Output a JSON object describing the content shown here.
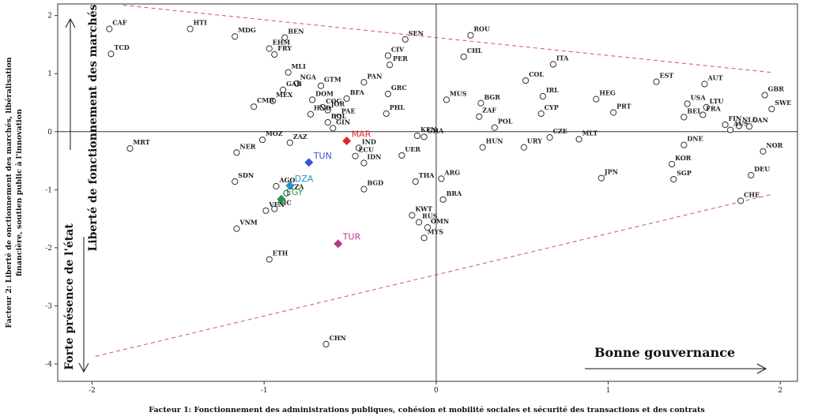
{
  "chart_data": {
    "type": "scatter",
    "xlabel": "Facteur 1: Fonctionnement des administrations publiques, cohésion et mobilité sociales et sécurité des transactions et des contrats",
    "ylabel_lines": [
      "Facteur 2: Liberté de onctionnement des marchés, libéralisation",
      "financière, soutien public à l'innovation"
    ],
    "xlim": [
      -2.2,
      2.1
    ],
    "ylim": [
      -4.3,
      2.2
    ],
    "xticks": [
      "-2",
      "-1",
      "0",
      "1",
      "2"
    ],
    "yticks": [
      "2",
      "1",
      "0",
      "-1",
      "-2",
      "-3",
      "-4"
    ],
    "annotations": {
      "right": "Bonne gouvernance",
      "up": "Liberté de fonctionnement des marchés",
      "down": "Forte présence de l'état"
    },
    "highlight_colors": {
      "MAR": "#e8262a",
      "TUN": "#3a56c8",
      "DZA": "#2a8fcc",
      "EGY": "#1f9a4a",
      "TUR": "#b8378a"
    },
    "points": [
      {
        "label": "CAF",
        "x": -1.9,
        "y": 1.77
      },
      {
        "label": "TCD",
        "x": -1.89,
        "y": 1.34
      },
      {
        "label": "HTI",
        "x": -1.43,
        "y": 1.77
      },
      {
        "label": "MDG",
        "x": -1.17,
        "y": 1.64
      },
      {
        "label": "BEN",
        "x": -0.88,
        "y": 1.62
      },
      {
        "label": "EHM",
        "x": -0.97,
        "y": 1.43
      },
      {
        "label": "FRY",
        "x": -0.94,
        "y": 1.33
      },
      {
        "label": "MLI",
        "x": -0.86,
        "y": 1.02
      },
      {
        "label": "NGA",
        "x": -0.81,
        "y": 0.83
      },
      {
        "label": "GTM",
        "x": -0.67,
        "y": 0.79
      },
      {
        "label": "GAB",
        "x": -0.89,
        "y": 0.72
      },
      {
        "label": "DOM",
        "x": -0.72,
        "y": 0.55
      },
      {
        "label": "MEX",
        "x": -0.95,
        "y": 0.53
      },
      {
        "label": "COG",
        "x": -0.66,
        "y": 0.42
      },
      {
        "label": "BFA",
        "x": -0.52,
        "y": 0.57
      },
      {
        "label": "JOR",
        "x": -0.63,
        "y": 0.37
      },
      {
        "label": "PAE",
        "x": -0.57,
        "y": 0.25
      },
      {
        "label": "HND",
        "x": -0.73,
        "y": 0.3
      },
      {
        "label": "CMR",
        "x": -1.06,
        "y": 0.43
      },
      {
        "label": "BOL",
        "x": -0.63,
        "y": 0.16
      },
      {
        "label": "PAN",
        "x": -0.42,
        "y": 0.85
      },
      {
        "label": "CIV",
        "x": -0.28,
        "y": 1.31
      },
      {
        "label": "PER",
        "x": -0.27,
        "y": 1.15
      },
      {
        "label": "SEN",
        "x": -0.18,
        "y": 1.59
      },
      {
        "label": "GRC",
        "x": -0.28,
        "y": 0.65
      },
      {
        "label": "PHL",
        "x": -0.29,
        "y": 0.31
      },
      {
        "label": "MOZ",
        "x": -1.01,
        "y": -0.14
      },
      {
        "label": "MRT",
        "x": -1.78,
        "y": -0.29
      },
      {
        "label": "ZAZ",
        "x": -0.85,
        "y": -0.19
      },
      {
        "label": "GIN",
        "x": -0.6,
        "y": 0.06
      },
      {
        "label": "KEN",
        "x": -0.11,
        "y": -0.07
      },
      {
        "label": "GHA",
        "x": -0.07,
        "y": -0.09
      },
      {
        "label": "IND",
        "x": -0.45,
        "y": -0.28
      },
      {
        "label": "ECU",
        "x": -0.47,
        "y": -0.42
      },
      {
        "label": "UER",
        "x": -0.2,
        "y": -0.41
      },
      {
        "label": "IDN",
        "x": -0.42,
        "y": -0.54
      },
      {
        "label": "NER",
        "x": -1.16,
        "y": -0.36
      },
      {
        "label": "SDN",
        "x": -1.17,
        "y": -0.86
      },
      {
        "label": "AGO",
        "x": -0.93,
        "y": -0.94
      },
      {
        "label": "TZA",
        "x": -0.87,
        "y": -1.06
      },
      {
        "label": "NIC",
        "x": -0.94,
        "y": -1.33
      },
      {
        "label": "VNM",
        "x": -1.16,
        "y": -1.67
      },
      {
        "label": "VEN",
        "x": -0.99,
        "y": -1.36
      },
      {
        "label": "BGD",
        "x": -0.42,
        "y": -0.99
      },
      {
        "label": "THA",
        "x": -0.12,
        "y": -0.86
      },
      {
        "label": "ARG",
        "x": 0.03,
        "y": -0.81
      },
      {
        "label": "BRA",
        "x": 0.04,
        "y": -1.17
      },
      {
        "label": "KWT",
        "x": -0.14,
        "y": -1.44
      },
      {
        "label": "RUS",
        "x": -0.1,
        "y": -1.56
      },
      {
        "label": "MYS",
        "x": -0.07,
        "y": -1.83
      },
      {
        "label": "OMN",
        "x": -0.05,
        "y": -1.65
      },
      {
        "label": "ETH",
        "x": -0.97,
        "y": -2.2
      },
      {
        "label": "CHN",
        "x": -0.64,
        "y": -3.66
      },
      {
        "label": "ROU",
        "x": 0.2,
        "y": 1.66
      },
      {
        "label": "CHL",
        "x": 0.16,
        "y": 1.29
      },
      {
        "label": "ITA",
        "x": 0.68,
        "y": 1.16
      },
      {
        "label": "COL",
        "x": 0.52,
        "y": 0.88
      },
      {
        "label": "IRL",
        "x": 0.62,
        "y": 0.61
      },
      {
        "label": "MUS",
        "x": 0.06,
        "y": 0.55
      },
      {
        "label": "BGR",
        "x": 0.26,
        "y": 0.49
      },
      {
        "label": "ZAF",
        "x": 0.25,
        "y": 0.26
      },
      {
        "label": "POL",
        "x": 0.34,
        "y": 0.07
      },
      {
        "label": "CYP",
        "x": 0.61,
        "y": 0.31
      },
      {
        "label": "CZE",
        "x": 0.66,
        "y": -0.1
      },
      {
        "label": "HUN",
        "x": 0.27,
        "y": -0.27
      },
      {
        "label": "URY",
        "x": 0.51,
        "y": -0.27
      },
      {
        "label": "MLT",
        "x": 0.83,
        "y": -0.13
      },
      {
        "label": "HEG",
        "x": 0.93,
        "y": 0.56
      },
      {
        "label": "PRT",
        "x": 1.03,
        "y": 0.33
      },
      {
        "label": "EST",
        "x": 1.28,
        "y": 0.86
      },
      {
        "label": "JPN",
        "x": 0.96,
        "y": -0.8
      },
      {
        "label": "AUT",
        "x": 1.56,
        "y": 0.82
      },
      {
        "label": "USA",
        "x": 1.46,
        "y": 0.48
      },
      {
        "label": "LTU",
        "x": 1.57,
        "y": 0.42
      },
      {
        "label": "FRA",
        "x": 1.55,
        "y": 0.29
      },
      {
        "label": "BEL",
        "x": 1.44,
        "y": 0.25
      },
      {
        "label": "FIN",
        "x": 1.68,
        "y": 0.12
      },
      {
        "label": "NLD",
        "x": 1.76,
        "y": 0.1
      },
      {
        "label": "AUS",
        "x": 1.71,
        "y": 0.03
      },
      {
        "label": "GBR",
        "x": 1.91,
        "y": 0.63
      },
      {
        "label": "SWE",
        "x": 1.95,
        "y": 0.39
      },
      {
        "label": "CAN",
        "x": 1.82,
        "y": 0.09
      },
      {
        "label": "NOR",
        "x": 1.9,
        "y": -0.34
      },
      {
        "label": "DNE",
        "x": 1.44,
        "y": -0.23
      },
      {
        "label": "KOR",
        "x": 1.37,
        "y": -0.56
      },
      {
        "label": "SGP",
        "x": 1.38,
        "y": -0.82
      },
      {
        "label": "DEU",
        "x": 1.83,
        "y": -0.75
      },
      {
        "label": "CHE",
        "x": 1.77,
        "y": -1.19
      }
    ],
    "highlighted": [
      {
        "label": "MAR",
        "x": -0.52,
        "y": -0.16
      },
      {
        "label": "TUN",
        "x": -0.74,
        "y": -0.53
      },
      {
        "label": "DZA",
        "x": -0.85,
        "y": -0.93
      },
      {
        "label": "EGY",
        "x": -0.9,
        "y": -1.16
      },
      {
        "label": "TUR",
        "x": -0.57,
        "y": -1.93
      }
    ]
  }
}
